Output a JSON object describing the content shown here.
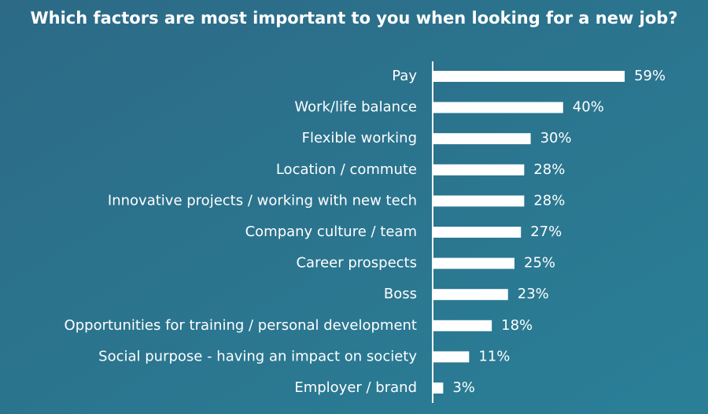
{
  "chart_data": {
    "type": "bar",
    "orientation": "horizontal",
    "title": "Which factors are most important to you when looking for a new job?",
    "categories": [
      "Pay",
      "Work/life balance",
      "Flexible working",
      "Location / commute",
      "Innovative projects / working with new tech",
      "Company culture / team",
      "Career prospects",
      "Boss",
      "Opportunities for training / personal development",
      "Social purpose - having an impact on society",
      "Employer / brand"
    ],
    "values": [
      59,
      40,
      30,
      28,
      28,
      27,
      25,
      23,
      18,
      11,
      3
    ],
    "value_labels": [
      "59%",
      "40%",
      "30%",
      "28%",
      "28%",
      "27%",
      "25%",
      "23%",
      "18%",
      "11%",
      "3%"
    ],
    "color": "#ffffff"
  }
}
